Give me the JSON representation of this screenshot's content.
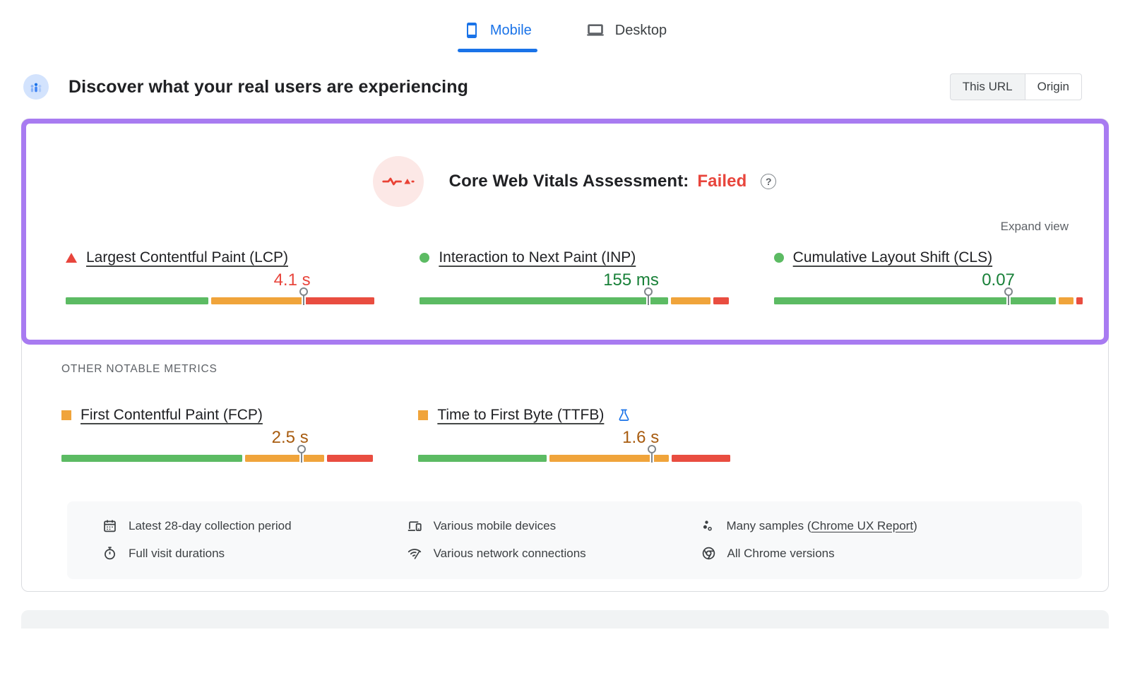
{
  "device_tabs": [
    {
      "id": "mobile",
      "label": "Mobile",
      "icon": "smartphone-icon",
      "selected": true
    },
    {
      "id": "desktop",
      "label": "Desktop",
      "icon": "laptop-icon",
      "selected": false
    }
  ],
  "field_header": {
    "title": "Discover what your real users are experiencing",
    "icon": "users-icon",
    "scope_toggle": {
      "options": [
        "This URL",
        "Origin"
      ],
      "selected": "This URL"
    }
  },
  "assessment": {
    "title": "Core Web Vitals Assessment:",
    "status": "Failed",
    "status_color": "#e8453c",
    "badge_icon": "heartbeat-waveform-icon",
    "help_icon_glyph": "?",
    "expand_label": "Expand view"
  },
  "other_metrics_heading": "OTHER NOTABLE METRICS",
  "chart_data": {
    "type": "bar",
    "title": "Core Web Vitals field data distributions (good / needs improvement / poor) with 75th percentile markers",
    "legend_position": "none",
    "core_metrics": [
      {
        "id": "lcp",
        "label": "Largest Contentful Paint (LCP)",
        "value": "4.1 s",
        "rating": "poor",
        "icon": "red-triangle",
        "distribution_pct": {
          "good": 47,
          "needs_improvement": 30,
          "poor": 23
        },
        "marker_pct": 77,
        "experimental": false
      },
      {
        "id": "inp",
        "label": "Interaction to Next Paint (INP)",
        "value": "155 ms",
        "rating": "good",
        "icon": "green-circle",
        "distribution_pct": {
          "good": 82,
          "needs_improvement": 13,
          "poor": 5
        },
        "marker_pct": 74,
        "experimental": false
      },
      {
        "id": "cls",
        "label": "Cumulative Layout Shift (CLS)",
        "value": "0.07",
        "rating": "good",
        "icon": "green-circle",
        "distribution_pct": {
          "good": 93,
          "needs_improvement": 5,
          "poor": 2
        },
        "marker_pct": 76,
        "experimental": false
      }
    ],
    "other_metrics": [
      {
        "id": "fcp",
        "label": "First Contentful Paint (FCP)",
        "value": "2.5 s",
        "rating": "needs-improvement",
        "icon": "orange-square",
        "distribution_pct": {
          "good": 59,
          "needs_improvement": 26,
          "poor": 15
        },
        "marker_pct": 77,
        "experimental": false
      },
      {
        "id": "ttfb",
        "label": "Time to First Byte (TTFB)",
        "value": "1.6 s",
        "rating": "needs-improvement",
        "icon": "orange-square",
        "distribution_pct": {
          "good": 42,
          "needs_improvement": 39,
          "poor": 19
        },
        "marker_pct": 75,
        "experimental": true
      }
    ]
  },
  "info_bar": {
    "items": [
      {
        "icon": "calendar-icon",
        "text": "Latest 28-day collection period"
      },
      {
        "icon": "devices-icon",
        "text": "Various mobile devices"
      },
      {
        "icon": "samples-icon",
        "text_prefix": "Many samples (",
        "link": "Chrome UX Report",
        "text_suffix": ")"
      },
      {
        "icon": "stopwatch-icon",
        "text": "Full visit durations"
      },
      {
        "icon": "network-icon",
        "text": "Various network connections"
      },
      {
        "icon": "chrome-icon",
        "text": "All Chrome versions"
      }
    ]
  },
  "colors": {
    "accent_blue": "#1a73e8",
    "highlight_purple": "#a87bf1",
    "bar_good": "#5cbb63",
    "bar_needs_improvement": "#f0a43b",
    "bar_poor": "#e94d40",
    "value_good": "#188038",
    "value_needs_improvement": "#a85c10",
    "value_poor": "#e8453c"
  }
}
